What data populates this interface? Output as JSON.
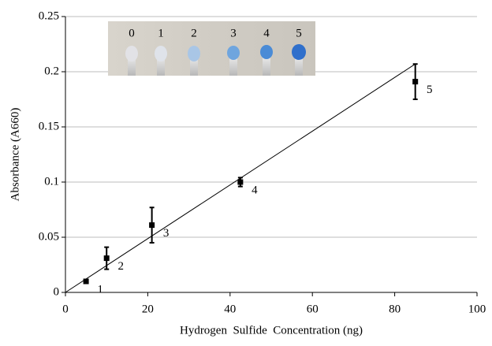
{
  "chart_data": {
    "type": "scatter",
    "x_label": "Hydrogen  Sulfide  Concentration (ng)",
    "y_label": "Absorbance (A660)",
    "x": [
      5,
      10,
      21,
      42.5,
      85
    ],
    "values": [
      0.01,
      0.031,
      0.061,
      0.1,
      0.191
    ],
    "errors": [
      0.001,
      0.01,
      0.016,
      0.004,
      0.016
    ],
    "point_labels": [
      "1",
      "2",
      "3",
      "4",
      "5"
    ],
    "trendline": {
      "x": [
        0,
        85
      ],
      "y": [
        0,
        0.207
      ]
    },
    "inset_labels": [
      "0",
      "1",
      "2",
      "3",
      "4",
      "5"
    ],
    "color": "#000000",
    "xlim": [
      0,
      100
    ],
    "xticks": [
      0,
      20,
      40,
      60,
      80,
      100
    ],
    "ylim": [
      0,
      0.25
    ],
    "yticks": [
      0,
      0.05,
      0.1,
      0.15,
      0.2,
      0.25
    ],
    "grid": true
  }
}
